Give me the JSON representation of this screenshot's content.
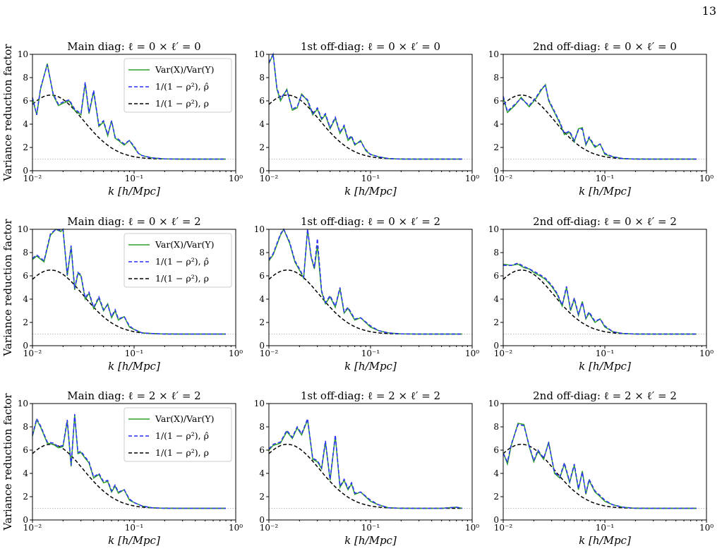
{
  "page_number": "13",
  "shared": {
    "ylabel": "Variance reduction factor",
    "xlabel": "k [h/Mpc]",
    "x_ticks": [
      "10⁻²",
      "10⁻¹",
      "10⁰"
    ],
    "y_ticks": [
      "0",
      "2",
      "4",
      "6",
      "8",
      "10"
    ],
    "legend": [
      {
        "label": "Var(X)/Var(Y)",
        "color": "#2ca02c",
        "style": "solid"
      },
      {
        "label": "1/(1 − ρ²), ρ̂",
        "color": "#2c2cff",
        "style": "dashed"
      },
      {
        "label": "1/(1 − ρ²), ρ",
        "color": "#000000",
        "style": "dashed"
      }
    ],
    "reference_line": {
      "y": 1,
      "color": "#bbbbbb",
      "style": "dotted"
    }
  },
  "chart_data": [
    {
      "type": "line",
      "title": "Main diag: ℓ = 0 × ℓ′ = 0",
      "xscale": "log",
      "xlim": [
        0.01,
        1
      ],
      "ylim": [
        0,
        10
      ],
      "legend": true,
      "x": [
        0.01,
        0.011,
        0.012,
        0.014,
        0.016,
        0.018,
        0.02,
        0.023,
        0.026,
        0.03,
        0.033,
        0.036,
        0.04,
        0.045,
        0.05,
        0.055,
        0.06,
        0.065,
        0.07,
        0.08,
        0.09,
        0.1,
        0.11,
        0.12,
        0.15,
        0.2,
        0.3,
        0.5,
        0.8
      ],
      "measured": [
        6.2,
        4.8,
        7.0,
        9.2,
        6.5,
        5.6,
        5.8,
        6.0,
        5.2,
        4.8,
        7.5,
        4.9,
        6.8,
        3.8,
        4.2,
        3.0,
        4.3,
        2.8,
        2.6,
        2.2,
        2.6,
        2.0,
        1.5,
        1.3,
        1.1,
        1.02,
        1.0,
        1.0,
        1.0
      ],
      "estimated": [
        6.3,
        4.8,
        7.1,
        9.1,
        6.6,
        5.7,
        5.9,
        6.1,
        5.3,
        4.9,
        7.6,
        5.0,
        6.9,
        3.9,
        4.3,
        3.1,
        4.3,
        2.9,
        2.7,
        2.3,
        2.6,
        2.1,
        1.5,
        1.3,
        1.1,
        1.02,
        1.0,
        1.0,
        1.0
      ]
    },
    {
      "type": "line",
      "title": "1st off-diag: ℓ = 0 × ℓ′ = 0",
      "xscale": "log",
      "xlim": [
        0.01,
        1
      ],
      "ylim": [
        0,
        10
      ],
      "legend": false,
      "x": [
        0.01,
        0.011,
        0.012,
        0.013,
        0.015,
        0.017,
        0.019,
        0.021,
        0.024,
        0.027,
        0.03,
        0.033,
        0.036,
        0.04,
        0.045,
        0.05,
        0.055,
        0.06,
        0.065,
        0.07,
        0.08,
        0.09,
        0.1,
        0.12,
        0.15,
        0.2,
        0.3,
        0.5,
        0.8
      ],
      "measured": [
        9.2,
        10.0,
        7.0,
        6.0,
        7.0,
        5.2,
        5.4,
        6.6,
        6.0,
        4.8,
        5.3,
        4.4,
        4.8,
        3.6,
        4.5,
        3.2,
        3.8,
        2.6,
        2.9,
        2.2,
        2.6,
        1.7,
        1.4,
        1.2,
        1.05,
        1.0,
        1.0,
        1.0,
        1.0
      ],
      "estimated": [
        9.3,
        10.0,
        7.1,
        6.2,
        6.9,
        5.3,
        5.5,
        6.5,
        6.1,
        4.9,
        5.4,
        4.5,
        4.9,
        3.7,
        4.6,
        3.3,
        3.9,
        2.7,
        3.0,
        2.3,
        2.5,
        1.8,
        1.4,
        1.2,
        1.05,
        1.0,
        1.0,
        1.0,
        1.0
      ]
    },
    {
      "type": "line",
      "title": "2nd off-diag: ℓ = 0 × ℓ′ = 0",
      "xscale": "log",
      "xlim": [
        0.01,
        1
      ],
      "ylim": [
        0,
        10
      ],
      "legend": false,
      "x": [
        0.01,
        0.011,
        0.013,
        0.015,
        0.018,
        0.021,
        0.024,
        0.026,
        0.028,
        0.032,
        0.036,
        0.04,
        0.045,
        0.05,
        0.055,
        0.06,
        0.065,
        0.07,
        0.08,
        0.09,
        0.1,
        0.12,
        0.15,
        0.2,
        0.3,
        0.5,
        0.8
      ],
      "measured": [
        6.3,
        5.0,
        5.6,
        6.3,
        5.5,
        6.2,
        7.0,
        7.4,
        6.0,
        5.0,
        4.1,
        3.1,
        3.3,
        2.5,
        3.6,
        3.7,
        2.2,
        2.8,
        2.0,
        2.3,
        1.4,
        1.2,
        1.05,
        1.0,
        1.0,
        1.0,
        1.0
      ],
      "estimated": [
        6.4,
        5.1,
        5.7,
        6.2,
        5.6,
        6.3,
        7.1,
        7.3,
        6.1,
        5.1,
        4.2,
        3.2,
        3.4,
        2.6,
        3.5,
        3.6,
        2.3,
        2.9,
        2.1,
        2.3,
        1.5,
        1.2,
        1.05,
        1.0,
        1.0,
        1.0,
        1.0
      ]
    },
    {
      "type": "line",
      "title": "Main diag: ℓ = 0 × ℓ′ = 2",
      "xscale": "log",
      "xlim": [
        0.01,
        1
      ],
      "ylim": [
        0,
        10
      ],
      "legend": true,
      "x": [
        0.01,
        0.011,
        0.013,
        0.015,
        0.017,
        0.019,
        0.02,
        0.022,
        0.024,
        0.026,
        0.028,
        0.03,
        0.033,
        0.036,
        0.04,
        0.045,
        0.05,
        0.055,
        0.06,
        0.065,
        0.07,
        0.08,
        0.09,
        0.1,
        0.12,
        0.15,
        0.2,
        0.3,
        0.5,
        0.8
      ],
      "measured": [
        7.4,
        7.7,
        7.2,
        9.5,
        10.0,
        9.8,
        10.0,
        6.0,
        8.5,
        4.8,
        6.2,
        6.0,
        4.0,
        4.5,
        3.2,
        4.1,
        3.0,
        3.6,
        2.4,
        3.0,
        2.2,
        2.5,
        1.6,
        1.4,
        1.1,
        1.05,
        1.0,
        1.0,
        1.0,
        1.0
      ],
      "estimated": [
        7.5,
        7.8,
        7.3,
        9.6,
        10.0,
        9.9,
        10.0,
        6.1,
        8.6,
        4.9,
        6.3,
        6.1,
        4.1,
        4.6,
        3.3,
        4.2,
        3.1,
        3.5,
        2.5,
        3.1,
        2.3,
        2.5,
        1.7,
        1.4,
        1.1,
        1.05,
        1.0,
        1.0,
        1.0,
        1.0
      ]
    },
    {
      "type": "line",
      "title": "1st off-diag: ℓ = 0 × ℓ′ = 2",
      "xscale": "log",
      "xlim": [
        0.01,
        1
      ],
      "ylim": [
        0,
        10
      ],
      "legend": false,
      "x": [
        0.01,
        0.011,
        0.013,
        0.014,
        0.016,
        0.018,
        0.02,
        0.022,
        0.024,
        0.026,
        0.028,
        0.03,
        0.033,
        0.036,
        0.04,
        0.045,
        0.05,
        0.055,
        0.06,
        0.07,
        0.08,
        0.1,
        0.12,
        0.15,
        0.2,
        0.3,
        0.5,
        0.8
      ],
      "measured": [
        7.3,
        7.8,
        9.5,
        10.0,
        8.8,
        7.2,
        6.5,
        5.8,
        10.0,
        7.6,
        6.6,
        8.6,
        4.6,
        3.6,
        4.2,
        3.3,
        4.9,
        2.8,
        3.2,
        2.2,
        2.4,
        1.6,
        1.3,
        1.1,
        1.02,
        1.0,
        1.0,
        1.0
      ],
      "estimated": [
        7.4,
        7.9,
        9.6,
        10.0,
        8.9,
        7.3,
        6.6,
        5.9,
        10.0,
        7.7,
        6.7,
        9.2,
        4.7,
        3.7,
        4.3,
        3.4,
        5.0,
        2.9,
        3.3,
        2.3,
        2.4,
        1.7,
        1.3,
        1.1,
        1.02,
        1.0,
        1.0,
        1.0
      ]
    },
    {
      "type": "line",
      "title": "2nd off-diag: ℓ = 0 × ℓ′ = 2",
      "xscale": "log",
      "xlim": [
        0.01,
        1
      ],
      "ylim": [
        0,
        10
      ],
      "legend": false,
      "x": [
        0.01,
        0.012,
        0.014,
        0.016,
        0.018,
        0.02,
        0.023,
        0.026,
        0.03,
        0.034,
        0.038,
        0.042,
        0.046,
        0.05,
        0.055,
        0.06,
        0.065,
        0.07,
        0.08,
        0.09,
        0.1,
        0.12,
        0.15,
        0.2,
        0.3,
        0.5,
        0.8
      ],
      "measured": [
        7.0,
        6.9,
        7.0,
        6.7,
        6.6,
        6.3,
        6.0,
        5.7,
        5.1,
        4.4,
        3.4,
        5.0,
        3.0,
        4.0,
        2.6,
        3.8,
        2.3,
        2.8,
        2.0,
        2.3,
        1.6,
        1.2,
        1.05,
        1.0,
        1.0,
        1.0,
        1.0
      ],
      "estimated": [
        6.9,
        6.9,
        7.1,
        6.8,
        6.6,
        6.4,
        6.1,
        5.8,
        5.2,
        4.5,
        3.5,
        5.1,
        3.1,
        4.1,
        2.7,
        3.7,
        2.4,
        2.9,
        2.1,
        2.3,
        1.7,
        1.2,
        1.05,
        1.0,
        1.0,
        1.0,
        1.0
      ]
    },
    {
      "type": "line",
      "title": "Main diag: ℓ = 2 × ℓ′ = 2",
      "xscale": "log",
      "xlim": [
        0.01,
        1
      ],
      "ylim": [
        0,
        10
      ],
      "legend": true,
      "x": [
        0.01,
        0.011,
        0.012,
        0.014,
        0.016,
        0.018,
        0.02,
        0.022,
        0.024,
        0.026,
        0.028,
        0.03,
        0.033,
        0.036,
        0.04,
        0.045,
        0.05,
        0.055,
        0.06,
        0.065,
        0.07,
        0.08,
        0.09,
        0.1,
        0.12,
        0.15,
        0.2,
        0.3,
        0.5,
        0.8
      ],
      "measured": [
        7.2,
        8.6,
        8.0,
        6.6,
        6.5,
        6.2,
        6.3,
        8.5,
        4.6,
        9.0,
        5.7,
        5.8,
        5.3,
        4.9,
        3.6,
        3.9,
        3.2,
        3.3,
        2.4,
        2.9,
        2.3,
        2.6,
        1.7,
        1.5,
        1.2,
        1.05,
        1.0,
        1.0,
        1.0,
        1.0
      ],
      "estimated": [
        7.3,
        8.7,
        8.1,
        6.7,
        6.6,
        6.3,
        6.4,
        8.6,
        4.7,
        9.1,
        5.8,
        5.9,
        5.4,
        5.0,
        3.7,
        4.0,
        3.3,
        3.4,
        2.5,
        3.0,
        2.4,
        2.6,
        1.8,
        1.5,
        1.2,
        1.05,
        1.0,
        1.0,
        1.0,
        1.0
      ]
    },
    {
      "type": "line",
      "title": "1st off-diag: ℓ = 2 × ℓ′ = 2",
      "xscale": "log",
      "xlim": [
        0.01,
        1
      ],
      "ylim": [
        0,
        10
      ],
      "legend": false,
      "x": [
        0.01,
        0.011,
        0.013,
        0.015,
        0.017,
        0.019,
        0.021,
        0.024,
        0.027,
        0.03,
        0.033,
        0.036,
        0.04,
        0.045,
        0.05,
        0.055,
        0.06,
        0.065,
        0.07,
        0.08,
        0.1,
        0.12,
        0.15,
        0.2,
        0.3,
        0.5,
        0.7,
        0.8
      ],
      "measured": [
        6.0,
        6.4,
        6.6,
        7.6,
        7.0,
        7.9,
        7.3,
        8.6,
        5.2,
        5.0,
        4.4,
        6.7,
        3.4,
        7.2,
        2.8,
        3.4,
        2.6,
        3.1,
        2.2,
        2.4,
        1.6,
        1.3,
        1.05,
        1.0,
        1.0,
        1.0,
        1.1,
        1.0
      ],
      "estimated": [
        6.1,
        6.5,
        6.7,
        7.7,
        7.1,
        8.0,
        7.4,
        8.7,
        5.3,
        5.1,
        4.5,
        6.8,
        3.5,
        7.3,
        2.9,
        3.5,
        2.7,
        3.2,
        2.3,
        2.4,
        1.7,
        1.3,
        1.05,
        1.0,
        1.0,
        1.0,
        1.1,
        1.0
      ]
    },
    {
      "type": "line",
      "title": "2nd off-diag: ℓ = 2 × ℓ′ = 2",
      "xscale": "log",
      "xlim": [
        0.01,
        1
      ],
      "ylim": [
        0,
        10
      ],
      "legend": false,
      "x": [
        0.01,
        0.011,
        0.012,
        0.014,
        0.016,
        0.018,
        0.02,
        0.022,
        0.025,
        0.028,
        0.032,
        0.036,
        0.04,
        0.045,
        0.05,
        0.055,
        0.06,
        0.065,
        0.07,
        0.08,
        0.09,
        0.1,
        0.12,
        0.15,
        0.2,
        0.3,
        0.5,
        0.8
      ],
      "measured": [
        5.8,
        4.8,
        6.4,
        8.3,
        8.2,
        6.3,
        5.0,
        5.9,
        5.2,
        6.7,
        4.0,
        3.6,
        4.8,
        3.2,
        4.7,
        2.6,
        4.2,
        2.2,
        3.4,
        2.4,
        2.0,
        1.6,
        1.3,
        1.1,
        1.0,
        1.0,
        1.0,
        1.0
      ],
      "estimated": [
        5.7,
        5.0,
        6.5,
        8.2,
        8.1,
        6.4,
        5.1,
        6.0,
        5.3,
        6.6,
        4.1,
        3.7,
        4.9,
        3.3,
        4.8,
        2.7,
        4.1,
        2.3,
        3.5,
        2.5,
        2.1,
        1.7,
        1.3,
        1.1,
        1.0,
        1.0,
        1.0,
        1.0
      ]
    }
  ]
}
